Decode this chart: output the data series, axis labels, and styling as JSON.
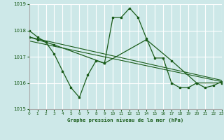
{
  "title": "Graphe pression niveau de la mer (hPa)",
  "bg_color": "#cde8e8",
  "grid_color": "#ffffff",
  "line_color": "#1a5c1a",
  "x_min": 0,
  "x_max": 23,
  "y_min": 1015,
  "y_max": 1019,
  "y_ticks": [
    1015,
    1016,
    1017,
    1018,
    1019
  ],
  "x_ticks": [
    0,
    1,
    2,
    3,
    4,
    5,
    6,
    7,
    8,
    9,
    10,
    11,
    12,
    13,
    14,
    15,
    16,
    17,
    18,
    19,
    20,
    21,
    22,
    23
  ],
  "series1_x": [
    0,
    1,
    2,
    3,
    4,
    5,
    6,
    7,
    8,
    9,
    10,
    11,
    12,
    13,
    14,
    15,
    16,
    17,
    18,
    19,
    20,
    21,
    22,
    23
  ],
  "series1_y": [
    1018.0,
    1017.75,
    1017.55,
    1017.1,
    1016.45,
    1015.82,
    1015.45,
    1016.3,
    1016.85,
    1016.75,
    1018.5,
    1018.5,
    1018.85,
    1018.5,
    1017.7,
    1016.95,
    1016.95,
    1016.0,
    1015.82,
    1015.82,
    1016.0,
    1015.82,
    1015.9,
    1016.05
  ],
  "series2_x": [
    0,
    1,
    3,
    9,
    14,
    17,
    20,
    23
  ],
  "series2_y": [
    1017.75,
    1017.65,
    1017.45,
    1016.75,
    1017.65,
    1016.85,
    1016.0,
    1016.0
  ],
  "trend1_x": [
    0,
    23
  ],
  "trend1_y": [
    1017.75,
    1016.1
  ],
  "trend2_x": [
    0,
    23
  ],
  "trend2_y": [
    1017.6,
    1016.05
  ]
}
